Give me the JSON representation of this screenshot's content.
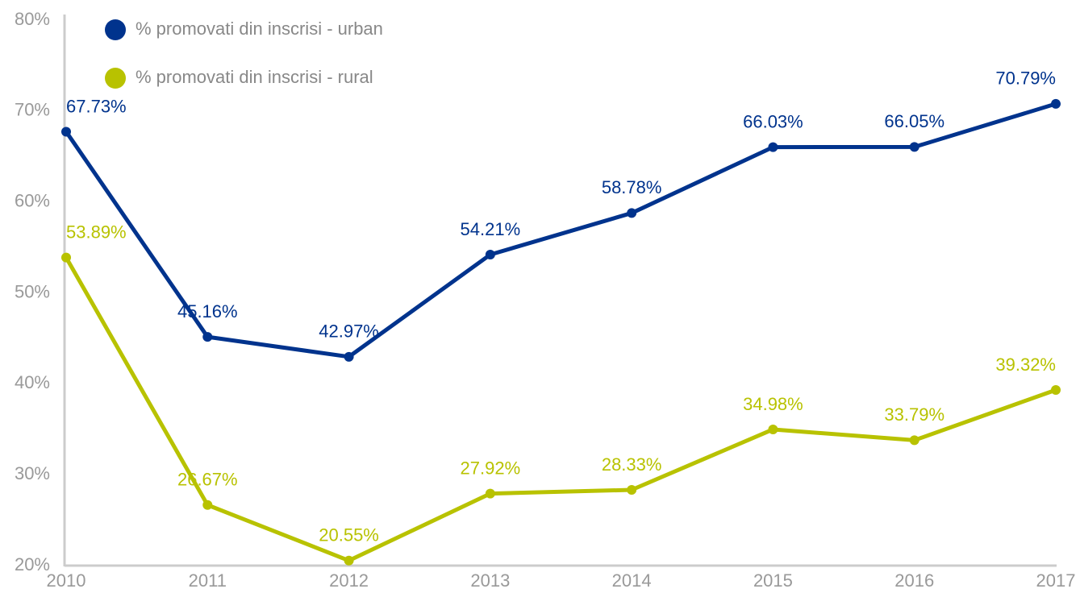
{
  "chart_data": {
    "type": "line",
    "categories": [
      "2010",
      "2011",
      "2012",
      "2013",
      "2014",
      "2015",
      "2016",
      "2017"
    ],
    "series": [
      {
        "name": "% promovati din inscrisi - urban",
        "color": "#00338d",
        "values": [
          67.73,
          45.16,
          42.97,
          54.21,
          58.78,
          66.03,
          66.05,
          70.79
        ],
        "value_labels": [
          "67.73%",
          "45.16%",
          "42.97%",
          "54.21%",
          "58.78%",
          "66.03%",
          "66.05%",
          "70.79%"
        ]
      },
      {
        "name": "% promovati din inscrisi - rural",
        "color": "#b8c200",
        "values": [
          53.89,
          26.67,
          20.55,
          27.92,
          28.33,
          34.98,
          33.79,
          39.32
        ],
        "value_labels": [
          "53.89%",
          "26.67%",
          "20.55%",
          "27.92%",
          "28.33%",
          "34.98%",
          "33.79%",
          "39.32%"
        ]
      }
    ],
    "ylim": [
      20,
      80
    ],
    "yticks": [
      {
        "value": 20,
        "label": "20%"
      },
      {
        "value": 30,
        "label": "30%"
      },
      {
        "value": 40,
        "label": "40%"
      },
      {
        "value": 50,
        "label": "50%"
      },
      {
        "value": 60,
        "label": "60%"
      },
      {
        "value": 70,
        "label": "70%"
      },
      {
        "value": 80,
        "label": "80%"
      }
    ],
    "grid": false,
    "legend": "upper left"
  }
}
